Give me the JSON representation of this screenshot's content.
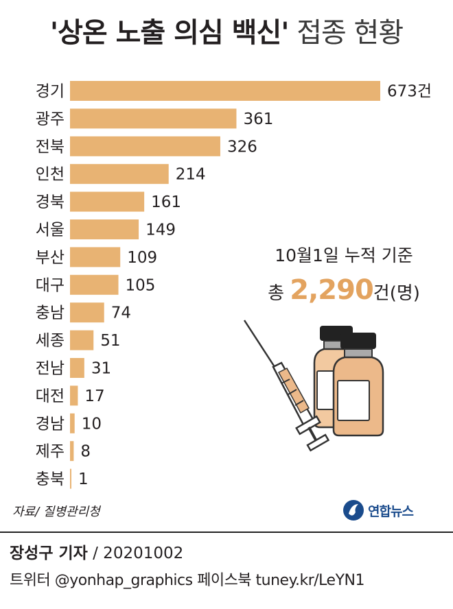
{
  "title": {
    "bold": "'상온 노출 의심 백신'",
    "light": "접종 현황"
  },
  "chart_data": {
    "type": "bar",
    "orientation": "horizontal",
    "categories": [
      "경기",
      "광주",
      "전북",
      "인천",
      "경북",
      "서울",
      "부산",
      "대구",
      "충남",
      "세종",
      "전남",
      "대전",
      "경남",
      "제주",
      "충북"
    ],
    "values": [
      673,
      361,
      326,
      214,
      161,
      149,
      109,
      105,
      74,
      51,
      31,
      17,
      10,
      8,
      1
    ],
    "value_labels": [
      "673건",
      "361",
      "326",
      "214",
      "161",
      "149",
      "109",
      "105",
      "74",
      "51",
      "31",
      "17",
      "10",
      "8",
      "1"
    ],
    "bar_color": "#e8b373",
    "xlim": [
      0,
      673
    ],
    "grid": false,
    "legend": "none"
  },
  "annotation": {
    "line1": "10월1일 누적 기준",
    "prefix": "총",
    "total_value": "2,290",
    "suffix": "건(명)"
  },
  "source": "자료/ 질병관리청",
  "logo_text": "연합뉴스",
  "credit": {
    "reporter": "장성구 기자",
    "date": " / 20201002"
  },
  "social": "트위터 @yonhap_graphics  페이스북 tuney.kr/LeYN1",
  "colors": {
    "bar": "#e8b373",
    "highlight": "#e3a35f",
    "logo": "#1a4b8c"
  }
}
